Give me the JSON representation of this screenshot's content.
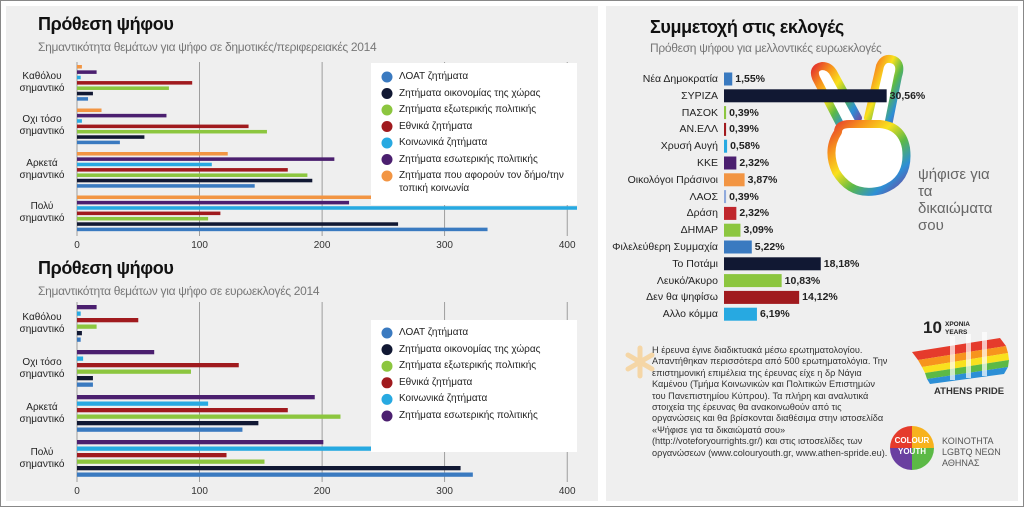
{
  "chart_data": [
    {
      "type": "bar",
      "orientation": "horizontal",
      "title": "Πρόθεση ψήφου",
      "subtitle": "Σημαντικότητα θεμάτων για ψήφο σε δημοτικές/περιφερειακές 2014",
      "categories": [
        "Καθόλου σημαντικό",
        "Οχι τόσο σημαντικό",
        "Αρκετά σημαντικό",
        "Πολύ σημαντικό"
      ],
      "series": [
        {
          "name": "ΛΟΑΤ ζητήματα",
          "color": "#3a7ac0",
          "values": [
            9,
            35,
            145,
            335
          ]
        },
        {
          "name": "Ζητήματα οικονομίας της χώρας",
          "color": "#111833",
          "values": [
            13,
            55,
            192,
            262
          ]
        },
        {
          "name": "Ζητήματα εξωτερικής πολιτικής",
          "color": "#8cc63f",
          "values": [
            75,
            155,
            188,
            107
          ]
        },
        {
          "name": "Εθνικά ζητήματα",
          "color": "#a01a1e",
          "values": [
            94,
            140,
            172,
            117
          ]
        },
        {
          "name": "Κοινωνικά ζητήματα",
          "color": "#27a9e1",
          "values": [
            3,
            4,
            110,
            408
          ]
        },
        {
          "name": "Ζητήματα εσωτερικής πολιτικής",
          "color": "#4b1f6f",
          "values": [
            16,
            73,
            210,
            222
          ]
        },
        {
          "name": "Ζητήματα που αφορούν τον δήμο/την τοπική κοινωνία",
          "color": "#f29543",
          "values": [
            4,
            20,
            123,
            240
          ]
        }
      ],
      "xlim": [
        0,
        408
      ],
      "xticks": [
        0,
        100,
        200,
        300,
        400
      ],
      "grid": true,
      "legend": "upper right"
    },
    {
      "type": "bar",
      "orientation": "horizontal",
      "title": "Πρόθεση ψήφου",
      "subtitle": "Σημαντικότητα θεμάτων για ψήφο σε ευρωεκλογές 2014",
      "categories": [
        "Καθόλου σημαντικό",
        "Οχι τόσο σημαντικό",
        "Αρκετά σημαντικό",
        "Πολύ σημαντικό"
      ],
      "series": [
        {
          "name": "ΛΟΑΤ ζητήματα",
          "color": "#3a7ac0",
          "values": [
            3,
            13,
            135,
            323
          ]
        },
        {
          "name": "Ζητήματα οικονομίας της χώρας",
          "color": "#111833",
          "values": [
            4,
            13,
            148,
            313
          ]
        },
        {
          "name": "Ζητήματα εξωτερικής πολιτικής",
          "color": "#8cc63f",
          "values": [
            16,
            93,
            215,
            153
          ]
        },
        {
          "name": "Εθνικά ζητήματα",
          "color": "#a01a1e",
          "values": [
            50,
            132,
            172,
            122
          ]
        },
        {
          "name": "Κοινωνικά ζητήματα",
          "color": "#27a9e1",
          "values": [
            3,
            5,
            107,
            360
          ]
        },
        {
          "name": "Ζητήματα εσωτερικής πολιτικής",
          "color": "#4b1f6f",
          "values": [
            16,
            63,
            194,
            201
          ]
        }
      ],
      "xlim": [
        0,
        408
      ],
      "xticks": [
        0,
        100,
        200,
        300,
        400
      ],
      "grid": true,
      "legend": "upper right"
    },
    {
      "type": "hbar",
      "title": "Συμμετοχή στις εκλογές",
      "subtitle": "Πρόθεση ψήφου για μελλοντικές ευρωεκλογές",
      "categories": [
        "Νέα Δημοκρατία",
        "ΣΥΡΙΖΑ",
        "ΠΑΣΟΚ",
        "ΑΝ.ΕΛΛ",
        "Χρυσή Αυγή",
        "ΚΚΕ",
        "Οικολόγοι Πράσινοι",
        "ΛΑΟΣ",
        "Δράση",
        "ΔΗΜΑΡ",
        "Φιλελεύθερη Συμμαχία",
        "Το Ποτάμι",
        "Λευκό/Άκυρο",
        "Δεν θα ψηφίσω",
        "Αλλο κόμμα"
      ],
      "values": [
        1.55,
        30.56,
        0.39,
        0.39,
        0.58,
        2.32,
        3.87,
        0.39,
        2.32,
        3.09,
        5.22,
        18.18,
        10.83,
        14.12,
        6.19
      ],
      "value_labels": [
        "1,55%",
        "30,56%",
        "0,39%",
        "0,39%",
        "0,58%",
        "2,32%",
        "3,87%",
        "0,39%",
        "2,32%",
        "3,09%",
        "5,22%",
        "18,18%",
        "10,83%",
        "14,12%",
        "6,19%"
      ],
      "colors": [
        "#3a7ac0",
        "#111833",
        "#8cc63f",
        "#a01a1e",
        "#27a9e1",
        "#4b1f6f",
        "#f29543",
        "#8fa9dc",
        "#c0272d",
        "#8cc63f",
        "#3a7ac0",
        "#111833",
        "#8cc63f",
        "#a01a1e",
        "#27a9e1"
      ],
      "xlim": [
        0,
        31
      ]
    }
  ],
  "note": "Η έρευνα έγινε διαδικτυακά μέσω ερωτηματολογίου. Απαντήθηκαν περισσότερα από 500 ερωτηματολόγια. Την επιστημονική επιμέλεια της έρευνας είχε η δρ Νάγια Καμένου (Τμήμα Κοινωνικών και Πολιτικών Επιστημών του Πανεπιστημίου Κύπρου). Τα πλήρη και αναλυτικά στοιχεία της έρευνας θα ανακοινωθούν από τις οργανώσεις και θα βρίσκονται διαθέσιμα στην ιστοσελίδα «Ψήφισε για τα δικαιώματά σου» (http://voteforyourrights.gr/) και στις ιστοσελίδες των οργανώσεων (www.colouryouth.gr, www.athen-spride.eu).",
  "slogan": "ψήφισε για τα δικαιώματα σου",
  "pride": {
    "years_number": "10",
    "years_gr": "ΧΡΟΝΙΑ",
    "years_en": "YEARS",
    "name": "ATHENS PRIDE"
  },
  "colour_youth": {
    "line1": "COLOUR",
    "line2": "YOUTH",
    "tagline": "ΚΟΙΝΟΤΗΤΑ LGBTQ ΝΕΩΝ ΑΘΗΝΑΣ"
  }
}
